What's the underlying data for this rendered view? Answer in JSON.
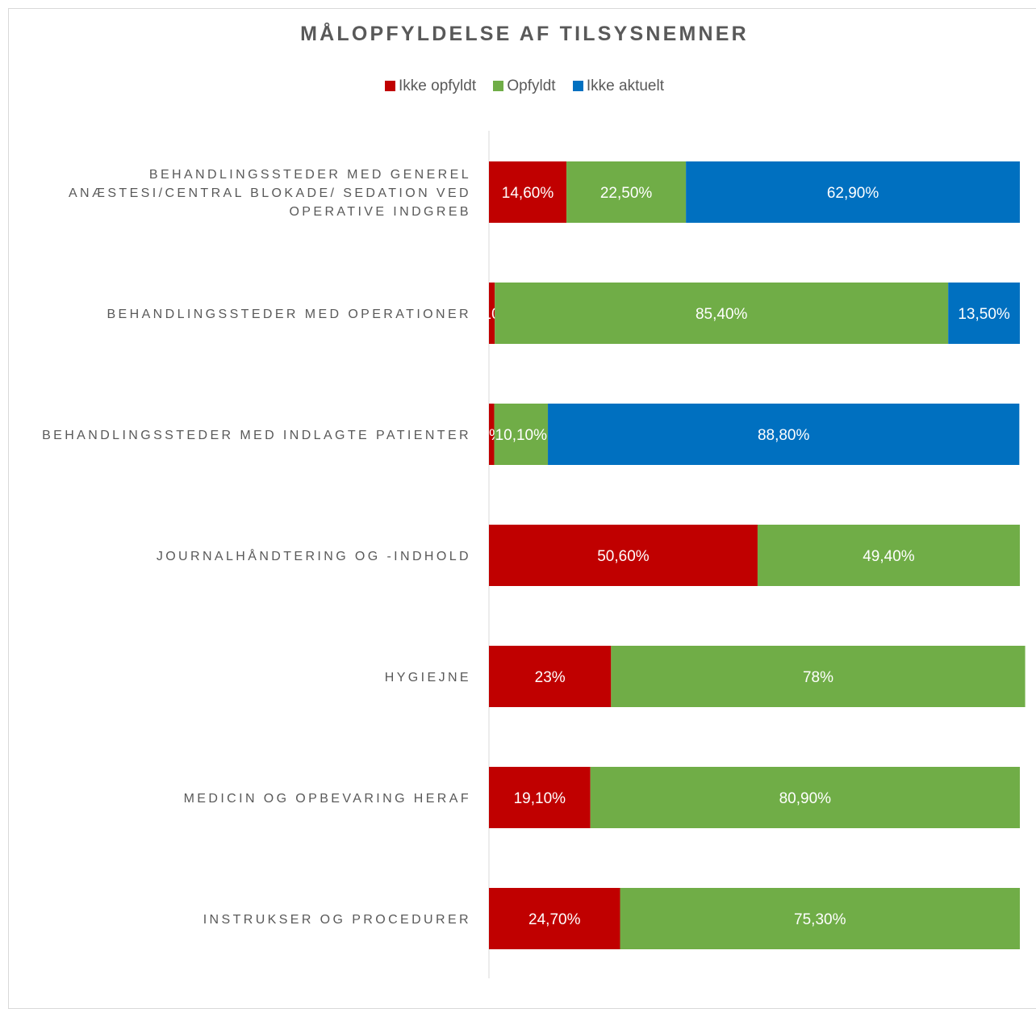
{
  "chart_data": {
    "type": "bar",
    "orientation": "horizontal",
    "stacked": "percent",
    "title": "MÅLOPFYLDELSE AF TILSYSNEMNER",
    "legend_position": "top",
    "grid": false,
    "xlim": [
      0,
      100
    ],
    "categories": [
      [
        "BEHANDLINGSSTEDER MED GENEREL",
        "ANÆSTESI/CENTRAL BLOKADE/ SEDATION VED",
        "OPERATIVE INDGREB"
      ],
      [
        "BEHANDLINGSSTEDER MED OPERATIONER"
      ],
      [
        "BEHANDLINGSSTEDER MED INDLAGTE PATIENTER"
      ],
      [
        "JOURNALHÅNDTERING OG -INDHOLD"
      ],
      [
        "HYGIEJNE"
      ],
      [
        "MEDICIN OG OPBEVARING HERAF"
      ],
      [
        "INSTRUKSER OG PROCEDURER"
      ]
    ],
    "series": [
      {
        "name": "Ikke opfyldt",
        "color": "#c00000",
        "values": [
          14.6,
          1.1,
          1.0,
          50.6,
          23,
          19.1,
          24.7
        ],
        "labels": [
          "14,60%",
          "1,10%",
          "1%",
          "50,60%",
          "23%",
          "19,10%",
          "24,70%"
        ]
      },
      {
        "name": "Opfyldt",
        "color": "#70ad47",
        "values": [
          22.5,
          85.4,
          10.1,
          49.4,
          78,
          80.9,
          75.3
        ],
        "labels": [
          "22,50%",
          "85,40%",
          "10,10%",
          "49,40%",
          "78%",
          "80,90%",
          "75,30%"
        ]
      },
      {
        "name": "Ikke aktuelt",
        "color": "#0070c0",
        "values": [
          62.9,
          13.5,
          88.8,
          0,
          0,
          0,
          0
        ],
        "labels": [
          "62,90%",
          "13,50%",
          "88,80%",
          "",
          "",
          "",
          ""
        ]
      }
    ]
  }
}
